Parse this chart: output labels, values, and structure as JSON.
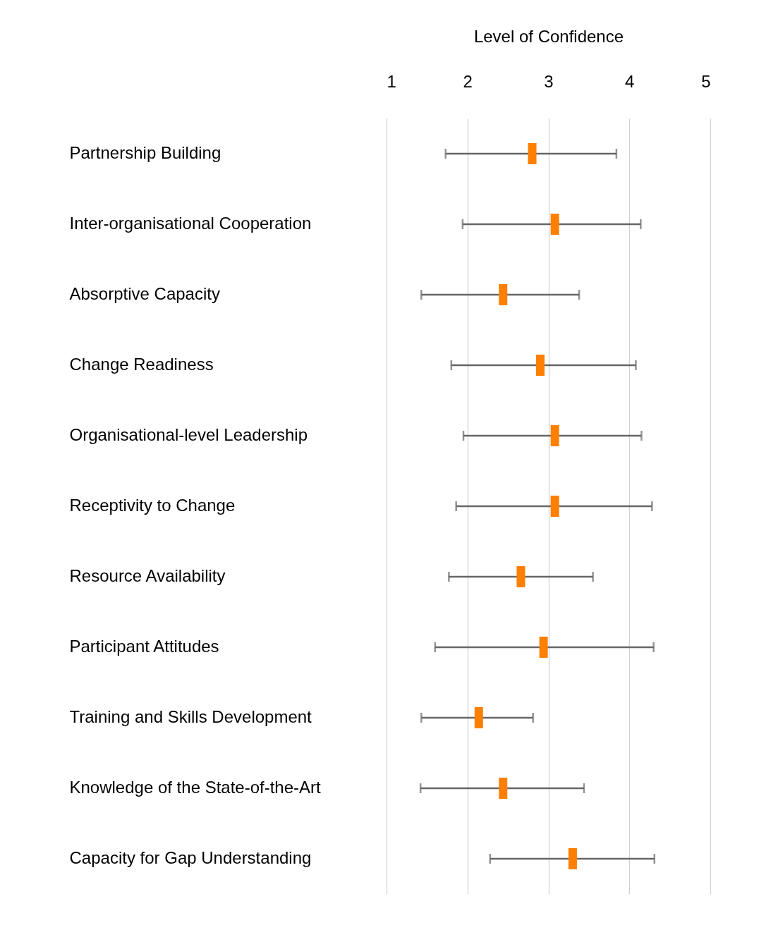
{
  "chart_data": {
    "type": "scatter",
    "orientation": "horizontal",
    "xlabel": "Level of Confidence",
    "categories": [
      "Partnership Building",
      "Inter-organisational Cooperation",
      "Absorptive Capacity",
      "Change Readiness",
      "Organisational-level Leadership",
      "Receptivity to Change",
      "Resource Availability",
      "Participant Attitudes",
      "Training and Skills Development",
      "Knowledge of the State-of-the-Art",
      "Capacity for Gap Understanding"
    ],
    "series": [
      {
        "color": "#ff7f00",
        "values": [
          2.8,
          3.08,
          2.44,
          2.9,
          3.08,
          3.08,
          2.66,
          2.94,
          2.14,
          2.44,
          3.3
        ],
        "errors": [
          [
            1.73,
            3.84
          ],
          [
            1.94,
            4.14
          ],
          [
            1.43,
            3.38
          ],
          [
            1.8,
            4.08
          ],
          [
            1.95,
            4.15
          ],
          [
            1.86,
            4.28
          ],
          [
            1.77,
            3.55
          ],
          [
            1.6,
            4.3
          ],
          [
            1.43,
            2.81
          ],
          [
            1.42,
            3.44
          ],
          [
            2.28,
            4.31
          ]
        ]
      }
    ],
    "xlim": [
      1,
      5
    ],
    "xticks": [
      1,
      2,
      3,
      4,
      5
    ],
    "grid": "x"
  }
}
